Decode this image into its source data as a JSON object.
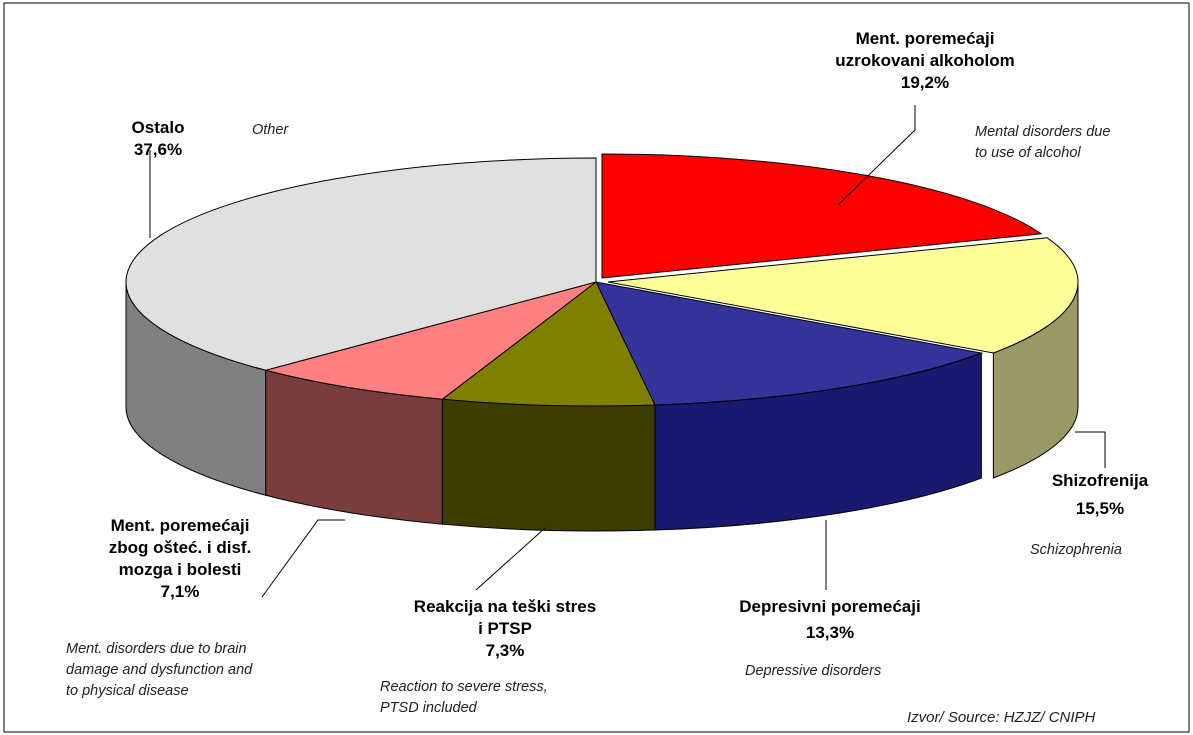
{
  "chart_data": {
    "type": "pie",
    "title": "",
    "style": "3d-exploded",
    "slices": [
      {
        "label": "Ment. poremećaji uzrokovani alkoholom",
        "label_lines": [
          "Ment. poremećaji",
          "uzrokovani alkoholom"
        ],
        "label_en": [
          "Mental disorders due",
          "to use of alcohol"
        ],
        "value": 19.2,
        "value_label": "19,2%",
        "color": "#ff0000",
        "side_color": "#aa2222"
      },
      {
        "label": "Shizofrenija",
        "label_lines": [
          "Shizofrenija"
        ],
        "label_en": [
          "Schizophrenia"
        ],
        "value": 15.5,
        "value_label": "15,5%",
        "color": "#ffff99",
        "side_color": "#999966"
      },
      {
        "label": "Depresivni poremećaji",
        "label_lines": [
          "Depresivni poremećaji"
        ],
        "label_en": [
          "Depressive disorders"
        ],
        "value": 13.3,
        "value_label": "13,3%",
        "color": "#333399",
        "side_color": "#191970"
      },
      {
        "label": "Reakcija na teški stres i PTSP",
        "label_lines": [
          "Reakcija na teški stres",
          "i PTSP"
        ],
        "label_en": [
          "Reaction to severe stress,",
          "PTSD included"
        ],
        "value": 7.3,
        "value_label": "7,3%",
        "color": "#808000",
        "side_color": "#3d3d00"
      },
      {
        "label": "Ment. poremećaji zbog oštec. i disf. mozga i bolesti",
        "label_lines": [
          "Ment. poremećaji",
          "zbog ošteć. i disf.",
          "mozga i bolesti"
        ],
        "label_en": [
          "Ment. disorders due to brain",
          "damage and dysfunction and",
          "to physical disease"
        ],
        "value": 7.1,
        "value_label": "7,1%",
        "color": "#ff8080",
        "side_color": "#7a3d3d"
      },
      {
        "label": "Ostalo",
        "label_lines": [
          "Ostalo"
        ],
        "label_en": [
          "Other"
        ],
        "value": 37.6,
        "value_label": "37,6%",
        "color": "#e0e0e0",
        "side_color": "#808080"
      }
    ]
  },
  "source": "Izvor/ Source:  HZJZ/ CNIPH"
}
